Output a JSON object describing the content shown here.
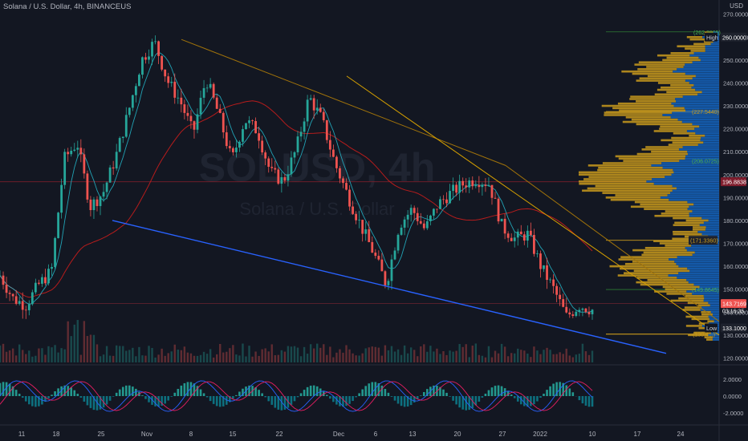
{
  "header": {
    "title": "Solana / U.S. Dollar, 4h, BINANCEUS"
  },
  "watermark": {
    "symbol": "SOLUSD, 4h",
    "name": "Solana / U.S. Dollar"
  },
  "currency": "USD",
  "colors": {
    "background": "#131722",
    "up": "#26a69a",
    "down": "#ef5350",
    "trendline_upper": "#f0b90b",
    "trendline_lower": "#2962ff",
    "ma_fast": "#26c6da",
    "ma_slow": "#b71c1c",
    "vp_up": "#1565c0",
    "vp_down": "#c99a1c",
    "osc_line1": "#2962ff",
    "osc_line2": "#e91e63"
  },
  "chart_data": {
    "type": "candlestick",
    "title": "Solana / U.S. Dollar, 4h, BINANCEUS",
    "y_axis": {
      "scale": "linear",
      "range": [
        117,
        272
      ],
      "ticks": [
        "270.0000",
        "260.0000",
        "250.0000",
        "240.0000",
        "230.0000",
        "220.0000",
        "210.0000",
        "200.0000",
        "190.0000",
        "180.0000",
        "170.0000",
        "160.0000",
        "150.0000",
        "140.0000",
        "130.0000",
        "120.0000"
      ]
    },
    "x_axis": {
      "ticks": [
        "11",
        "18",
        "25",
        "Nov",
        "8",
        "15",
        "22",
        "Dec",
        "6",
        "13",
        "20",
        "27",
        "2022",
        "10",
        "17",
        "24"
      ]
    },
    "price_path": [
      [
        "11",
        156
      ],
      [
        "15",
        146
      ],
      [
        "18",
        143
      ],
      [
        "20",
        152
      ],
      [
        "22",
        158
      ],
      [
        "24",
        207
      ],
      [
        "25",
        214
      ],
      [
        "27",
        186
      ],
      [
        "29",
        192
      ],
      [
        "Nov",
        208
      ],
      [
        "3",
        228
      ],
      [
        "5",
        250
      ],
      [
        "7",
        258
      ],
      [
        "9",
        241
      ],
      [
        "11",
        232
      ],
      [
        "13",
        218
      ],
      [
        "15",
        242
      ],
      [
        "17",
        226
      ],
      [
        "19",
        206
      ],
      [
        "21",
        224
      ],
      [
        "23",
        219
      ],
      [
        "25",
        201
      ],
      [
        "27",
        197
      ],
      [
        "29",
        211
      ],
      [
        "Dec",
        234
      ],
      [
        "2",
        224
      ],
      [
        "4",
        205
      ],
      [
        "6",
        191
      ],
      [
        "8",
        178
      ],
      [
        "10",
        166
      ],
      [
        "12",
        152
      ],
      [
        "14",
        178
      ],
      [
        "16",
        185
      ],
      [
        "18",
        176
      ],
      [
        "20",
        187
      ],
      [
        "22",
        192
      ],
      [
        "24",
        196
      ],
      [
        "26",
        198
      ],
      [
        "27",
        196
      ],
      [
        "29",
        177
      ],
      [
        "31",
        172
      ],
      [
        "2022",
        174
      ],
      [
        "3",
        160
      ],
      [
        "5",
        150
      ],
      [
        "7",
        138
      ],
      [
        "9",
        143
      ],
      [
        "10",
        141
      ]
    ],
    "price_labels": [
      {
        "text": "(262.2805)",
        "value": 262.2805
      },
      {
        "text": "High",
        "value": 260
      },
      {
        "text": "260.0000",
        "value": 260
      },
      {
        "text": "(227.5440)",
        "value": 227.544
      },
      {
        "text": "(206.0725)",
        "value": 206.0725
      },
      {
        "text": "196.8838",
        "value": 196.8838
      },
      {
        "text": "(171.3360)",
        "value": 171.336
      },
      {
        "text": "(149.8645)",
        "value": 149.8645
      },
      {
        "text": "143.7169",
        "value": 143.7169
      },
      {
        "text": "03:16:35",
        "value": null
      },
      {
        "text": "Low",
        "value": 133.1
      },
      {
        "text": "133.1000",
        "value": 133.1
      },
      {
        "text": "(130.4...)",
        "value": 130.4
      }
    ],
    "trendlines": [
      {
        "name": "upper",
        "points": [
          [
            "Nov 7",
            259
          ],
          [
            "Dec 27",
            202
          ],
          [
            "Jan 17",
            133
          ]
        ]
      },
      {
        "name": "upper2",
        "points": [
          [
            "Dec 1",
            243
          ],
          [
            "Jan 20",
            128
          ]
        ]
      },
      {
        "name": "lower",
        "points": [
          [
            "Oct 27",
            180
          ],
          [
            "Jan 24",
            122
          ]
        ]
      }
    ],
    "oscillator": {
      "ticks": [
        "2.0000",
        "0.0000",
        "-2.0000"
      ],
      "range": [
        -3,
        3
      ]
    }
  }
}
